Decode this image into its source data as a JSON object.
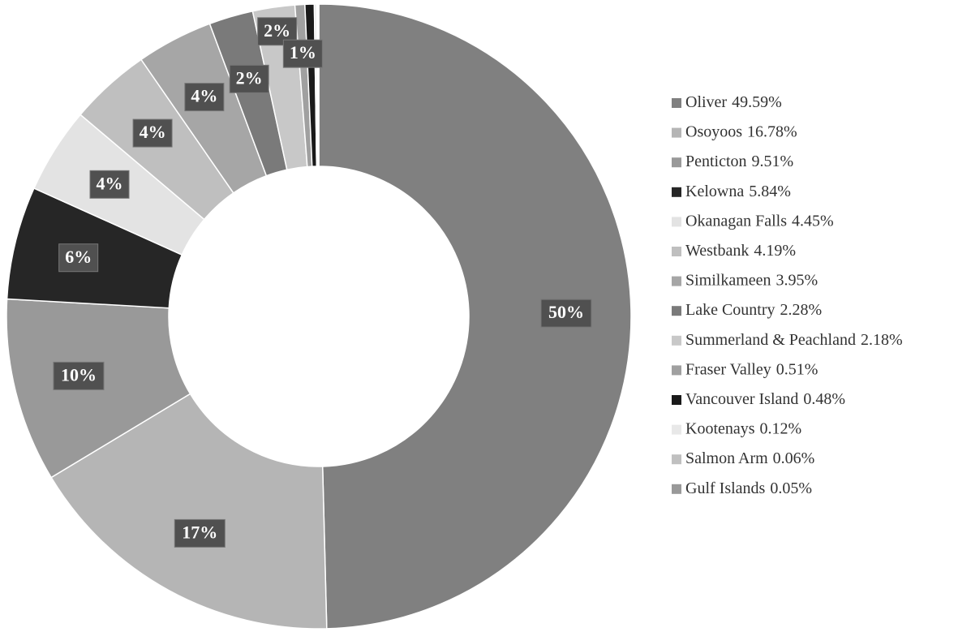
{
  "chart_data": {
    "type": "donut",
    "categories": [
      "Oliver",
      "Osoyoos",
      "Penticton",
      "Kelowna",
      "Okanagan Falls",
      "Westbank",
      "Similkameen",
      "Lake Country",
      "Summerland & Peachland",
      "Fraser Valley",
      "Vancouver Island",
      "Kootenays",
      "Salmon Arm",
      "Gulf Islands"
    ],
    "values": [
      49.59,
      16.78,
      9.51,
      5.84,
      4.45,
      4.19,
      3.95,
      2.28,
      2.18,
      0.51,
      0.48,
      0.12,
      0.06,
      0.05
    ],
    "value_labels": [
      "50%",
      "17%",
      "10%",
      "6%",
      "4%",
      "4%",
      "4%",
      "2%",
      "2%",
      "1%",
      null,
      null,
      null,
      null
    ],
    "legend_labels": [
      "49.59%",
      "16.78%",
      "9.51%",
      "5.84%",
      "4.45%",
      "4.19%",
      "3.95%",
      "2.28%",
      "2.18%",
      "0.51%",
      "0.48%",
      "0.12%",
      "0.06%",
      "0.05%"
    ],
    "colors": [
      "#808080",
      "#b5b5b5",
      "#999999",
      "#262626",
      "#e3e3e3",
      "#bfbfbf",
      "#a6a6a6",
      "#7a7a7a",
      "#c8c8c8",
      "#a0a0a0",
      "#1a1a1a",
      "#e8e8e8",
      "#c0c0c0",
      "#999999"
    ],
    "legend": "right"
  }
}
